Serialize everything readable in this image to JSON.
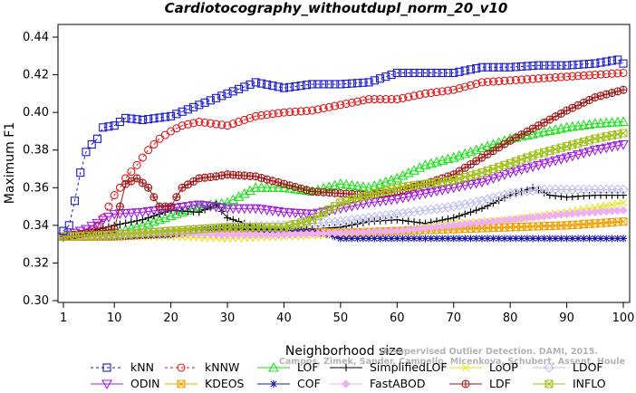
{
  "chart_data": {
    "type": "line",
    "title": "Cardiotocography_withoutdupl_norm_20_v10",
    "xlabel": "Neighborhood size",
    "ylabel": "Maximum F1",
    "xlim": [
      1,
      100
    ],
    "ylim": [
      0.3,
      0.44
    ],
    "x_ticks": [
      1,
      10,
      20,
      30,
      40,
      50,
      60,
      70,
      80,
      90,
      100
    ],
    "y_ticks": [
      "0.30",
      "0.32",
      "0.34",
      "0.36",
      "0.38",
      "0.40",
      "0.42",
      "0.44"
    ],
    "grid": false,
    "legend_position": "bottom",
    "credit_lines": [
      "Campos, Zimek, Sander, Campello, Micenkova, Schubert, Assent, Houle",
      "Unsupervised Outlier Detection. DAMI, 2015."
    ],
    "x": [
      1,
      100
    ],
    "series": [
      {
        "name": "kNN",
        "color": "#1a1acc",
        "marker": "square",
        "dashed": true,
        "points": [
          [
            1,
            0.337
          ],
          [
            2,
            0.34
          ],
          [
            3,
            0.353
          ],
          [
            4,
            0.368
          ],
          [
            5,
            0.379
          ],
          [
            6,
            0.383
          ],
          [
            7,
            0.386
          ],
          [
            8,
            0.392
          ],
          [
            10,
            0.393
          ],
          [
            12,
            0.397
          ],
          [
            15,
            0.396
          ],
          [
            20,
            0.398
          ],
          [
            25,
            0.404
          ],
          [
            30,
            0.41
          ],
          [
            35,
            0.416
          ],
          [
            40,
            0.413
          ],
          [
            45,
            0.415
          ],
          [
            50,
            0.415
          ],
          [
            55,
            0.416
          ],
          [
            60,
            0.421
          ],
          [
            65,
            0.421
          ],
          [
            70,
            0.421
          ],
          [
            75,
            0.424
          ],
          [
            80,
            0.424
          ],
          [
            85,
            0.425
          ],
          [
            90,
            0.425
          ],
          [
            95,
            0.426
          ],
          [
            99,
            0.428
          ],
          [
            100,
            0.426
          ]
        ]
      },
      {
        "name": "kNNW",
        "color": "#e01a1a",
        "marker": "circle",
        "dashed": true,
        "points": [
          [
            1,
            0.334
          ],
          [
            3,
            0.334
          ],
          [
            5,
            0.336
          ],
          [
            7,
            0.34
          ],
          [
            8,
            0.344
          ],
          [
            9,
            0.35
          ],
          [
            10,
            0.356
          ],
          [
            11,
            0.36
          ],
          [
            12,
            0.365
          ],
          [
            14,
            0.372
          ],
          [
            16,
            0.38
          ],
          [
            18,
            0.386
          ],
          [
            20,
            0.39
          ],
          [
            22,
            0.393
          ],
          [
            25,
            0.395
          ],
          [
            30,
            0.393
          ],
          [
            35,
            0.398
          ],
          [
            40,
            0.4
          ],
          [
            45,
            0.401
          ],
          [
            50,
            0.404
          ],
          [
            55,
            0.407
          ],
          [
            60,
            0.407
          ],
          [
            65,
            0.41
          ],
          [
            70,
            0.412
          ],
          [
            75,
            0.416
          ],
          [
            80,
            0.417
          ],
          [
            85,
            0.418
          ],
          [
            90,
            0.419
          ],
          [
            95,
            0.42
          ],
          [
            100,
            0.421
          ]
        ]
      },
      {
        "name": "LOF",
        "color": "#1ae01a",
        "marker": "triangle",
        "points": [
          [
            1,
            0.334
          ],
          [
            5,
            0.334
          ],
          [
            10,
            0.336
          ],
          [
            15,
            0.34
          ],
          [
            20,
            0.345
          ],
          [
            25,
            0.35
          ],
          [
            30,
            0.352
          ],
          [
            35,
            0.36
          ],
          [
            40,
            0.36
          ],
          [
            45,
            0.358
          ],
          [
            50,
            0.362
          ],
          [
            55,
            0.36
          ],
          [
            60,
            0.365
          ],
          [
            65,
            0.372
          ],
          [
            70,
            0.376
          ],
          [
            75,
            0.381
          ],
          [
            80,
            0.386
          ],
          [
            85,
            0.389
          ],
          [
            90,
            0.392
          ],
          [
            95,
            0.394
          ],
          [
            100,
            0.395
          ]
        ]
      },
      {
        "name": "SimplifiedLOF",
        "color": "#000000",
        "marker": "plus",
        "points": [
          [
            1,
            0.334
          ],
          [
            5,
            0.336
          ],
          [
            10,
            0.34
          ],
          [
            15,
            0.343
          ],
          [
            20,
            0.348
          ],
          [
            25,
            0.347
          ],
          [
            28,
            0.351
          ],
          [
            30,
            0.344
          ],
          [
            35,
            0.339
          ],
          [
            40,
            0.337
          ],
          [
            45,
            0.338
          ],
          [
            50,
            0.339
          ],
          [
            55,
            0.342
          ],
          [
            60,
            0.343
          ],
          [
            65,
            0.341
          ],
          [
            70,
            0.344
          ],
          [
            75,
            0.349
          ],
          [
            80,
            0.356
          ],
          [
            84,
            0.36
          ],
          [
            87,
            0.356
          ],
          [
            90,
            0.355
          ],
          [
            95,
            0.356
          ],
          [
            100,
            0.356
          ]
        ]
      },
      {
        "name": "LoOP",
        "color": "#e6e61a",
        "marker": "x",
        "points": [
          [
            1,
            0.334
          ],
          [
            10,
            0.334
          ],
          [
            20,
            0.334
          ],
          [
            30,
            0.333
          ],
          [
            40,
            0.334
          ],
          [
            50,
            0.335
          ],
          [
            60,
            0.337
          ],
          [
            70,
            0.341
          ],
          [
            80,
            0.343
          ],
          [
            90,
            0.347
          ],
          [
            100,
            0.352
          ]
        ]
      },
      {
        "name": "LDOF",
        "color": "#c0c0f0",
        "marker": "diamond",
        "points": [
          [
            1,
            0.334
          ],
          [
            10,
            0.335
          ],
          [
            20,
            0.337
          ],
          [
            30,
            0.339
          ],
          [
            40,
            0.34
          ],
          [
            50,
            0.342
          ],
          [
            60,
            0.346
          ],
          [
            70,
            0.35
          ],
          [
            75,
            0.353
          ],
          [
            80,
            0.357
          ],
          [
            85,
            0.359
          ],
          [
            90,
            0.359
          ],
          [
            95,
            0.359
          ],
          [
            100,
            0.359
          ]
        ]
      },
      {
        "name": "ODIN",
        "color": "#a01ae0",
        "marker": "triangle-down",
        "points": [
          [
            1,
            0.334
          ],
          [
            5,
            0.338
          ],
          [
            10,
            0.346
          ],
          [
            15,
            0.347
          ],
          [
            20,
            0.349
          ],
          [
            25,
            0.351
          ],
          [
            30,
            0.349
          ],
          [
            35,
            0.349
          ],
          [
            40,
            0.347
          ],
          [
            45,
            0.346
          ],
          [
            50,
            0.349
          ],
          [
            55,
            0.352
          ],
          [
            60,
            0.354
          ],
          [
            65,
            0.357
          ],
          [
            70,
            0.36
          ],
          [
            75,
            0.363
          ],
          [
            80,
            0.368
          ],
          [
            85,
            0.372
          ],
          [
            90,
            0.376
          ],
          [
            95,
            0.38
          ],
          [
            100,
            0.383
          ]
        ]
      },
      {
        "name": "KDEOS",
        "color": "#f0a000",
        "marker": "square-x",
        "points": [
          [
            1,
            0.334
          ],
          [
            10,
            0.334
          ],
          [
            20,
            0.336
          ],
          [
            30,
            0.338
          ],
          [
            40,
            0.337
          ],
          [
            50,
            0.336
          ],
          [
            60,
            0.337
          ],
          [
            70,
            0.338
          ],
          [
            80,
            0.339
          ],
          [
            90,
            0.34
          ],
          [
            100,
            0.342
          ]
        ]
      },
      {
        "name": "COF",
        "color": "#1a1aa0",
        "marker": "star",
        "points": [
          [
            1,
            0.334
          ],
          [
            10,
            0.334
          ],
          [
            20,
            0.335
          ],
          [
            30,
            0.339
          ],
          [
            40,
            0.337
          ],
          [
            45,
            0.337
          ],
          [
            48,
            0.335
          ],
          [
            50,
            0.333
          ],
          [
            60,
            0.333
          ],
          [
            70,
            0.333
          ],
          [
            80,
            0.333
          ],
          [
            90,
            0.333
          ],
          [
            100,
            0.333
          ]
        ]
      },
      {
        "name": "FastABOD",
        "color": "#f0b0f0",
        "marker": "diamond-filled",
        "points": [
          [
            1,
            0.334
          ],
          [
            10,
            0.335
          ],
          [
            20,
            0.336
          ],
          [
            30,
            0.335
          ],
          [
            40,
            0.335
          ],
          [
            50,
            0.336
          ],
          [
            60,
            0.337
          ],
          [
            70,
            0.34
          ],
          [
            80,
            0.343
          ],
          [
            90,
            0.346
          ],
          [
            100,
            0.348
          ]
        ]
      },
      {
        "name": "LDF",
        "color": "#a01a1a",
        "marker": "circle-plus",
        "points": [
          [
            1,
            0.334
          ],
          [
            10,
            0.338
          ],
          [
            12,
            0.362
          ],
          [
            14,
            0.365
          ],
          [
            16,
            0.36
          ],
          [
            18,
            0.35
          ],
          [
            20,
            0.35
          ],
          [
            22,
            0.36
          ],
          [
            25,
            0.365
          ],
          [
            28,
            0.366
          ],
          [
            30,
            0.367
          ],
          [
            35,
            0.366
          ],
          [
            40,
            0.362
          ],
          [
            45,
            0.358
          ],
          [
            50,
            0.357
          ],
          [
            55,
            0.356
          ],
          [
            60,
            0.358
          ],
          [
            65,
            0.362
          ],
          [
            70,
            0.367
          ],
          [
            75,
            0.376
          ],
          [
            80,
            0.385
          ],
          [
            85,
            0.393
          ],
          [
            90,
            0.401
          ],
          [
            95,
            0.408
          ],
          [
            100,
            0.412
          ]
        ]
      },
      {
        "name": "INFLO",
        "color": "#a0c01a",
        "marker": "square-x",
        "points": [
          [
            1,
            0.334
          ],
          [
            10,
            0.335
          ],
          [
            20,
            0.337
          ],
          [
            30,
            0.339
          ],
          [
            40,
            0.339
          ],
          [
            45,
            0.343
          ],
          [
            50,
            0.352
          ],
          [
            55,
            0.356
          ],
          [
            60,
            0.36
          ],
          [
            65,
            0.362
          ],
          [
            70,
            0.364
          ],
          [
            75,
            0.368
          ],
          [
            80,
            0.373
          ],
          [
            85,
            0.378
          ],
          [
            90,
            0.382
          ],
          [
            95,
            0.386
          ],
          [
            100,
            0.389
          ]
        ]
      }
    ],
    "legend_rows": [
      [
        "kNN",
        "kNNW",
        "LOF",
        "SimplifiedLOF",
        "LoOP",
        "LDOF"
      ],
      [
        "ODIN",
        "KDEOS",
        "COF",
        "FastABOD",
        "LDF",
        "INFLO"
      ]
    ]
  }
}
